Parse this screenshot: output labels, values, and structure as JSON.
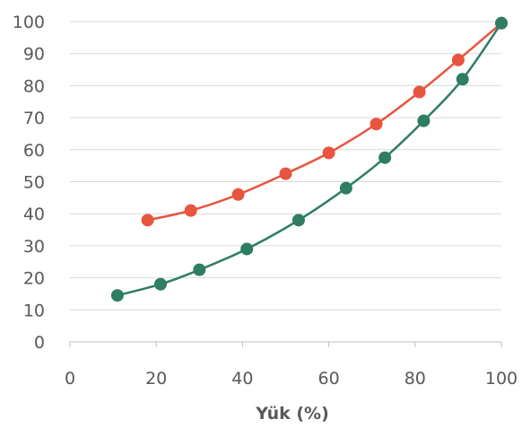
{
  "chart_data": {
    "type": "line",
    "title": "",
    "xlabel": "Yük (%)",
    "ylabel": "",
    "xlim": [
      0,
      100
    ],
    "ylim": [
      0,
      100
    ],
    "xticks": [
      0,
      20,
      40,
      60,
      80,
      100
    ],
    "yticks": [
      0,
      10,
      20,
      30,
      40,
      50,
      60,
      70,
      80,
      90,
      100
    ],
    "grid": "horizontal",
    "legend": "none",
    "series": [
      {
        "color": "#e8553e",
        "x": [
          18,
          28,
          39,
          50,
          60,
          71,
          81,
          90,
          100
        ],
        "y": [
          38,
          41,
          46,
          52.5,
          59,
          68,
          78,
          88,
          99.5
        ]
      },
      {
        "color": "#2e7d64",
        "x": [
          11,
          21,
          30,
          41,
          53,
          64,
          73,
          82,
          91,
          100
        ],
        "y": [
          14.5,
          18,
          22.5,
          29,
          38,
          48,
          57.5,
          69,
          82,
          99.5
        ]
      }
    ]
  }
}
